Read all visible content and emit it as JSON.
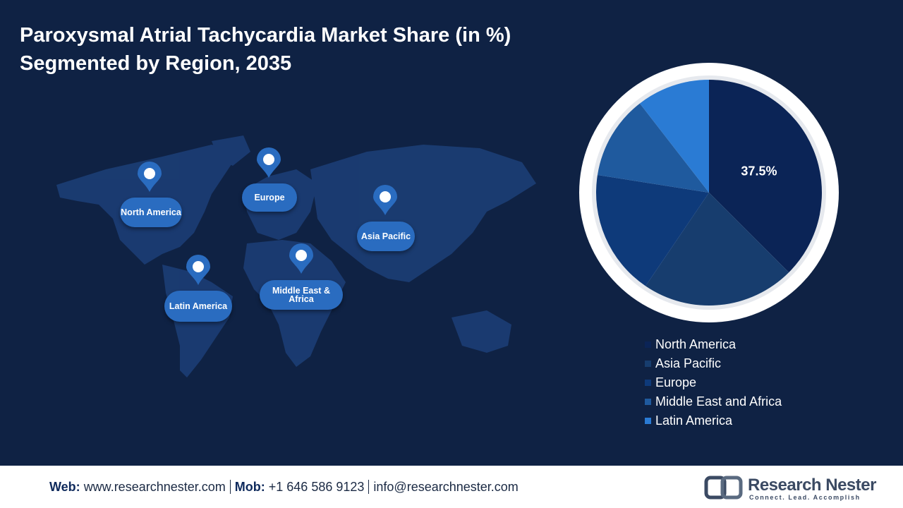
{
  "chart_data": {
    "type": "pie",
    "title": "Paroxysmal Atrial Tachycardia Market Share (in %)",
    "subtitle": "Segmented by Region, 2035",
    "categories": [
      "North America",
      "Asia Pacific",
      "Europe",
      "Middle East and Africa",
      "Latin America"
    ],
    "values": [
      37.5,
      22,
      18,
      12,
      10.5
    ],
    "value_labels": [
      "37.5%",
      null,
      null,
      null,
      null
    ],
    "colors": [
      "#0b2456",
      "#173d6e",
      "#0e3a7a",
      "#1f5a9e",
      "#2a7bd4"
    ]
  },
  "map": {
    "pins": [
      "North America",
      "Europe",
      "Asia Pacific",
      "Latin America",
      "Middle East & Africa"
    ]
  },
  "footer": {
    "web_label": "Web:",
    "web": "www.researchnester.com",
    "mob_label": "Mob:",
    "mob": "+1 646 586 9123",
    "email": "info@researchnester.com",
    "brand": "Research Nester",
    "tagline": "Connect. Lead. Accomplish"
  }
}
